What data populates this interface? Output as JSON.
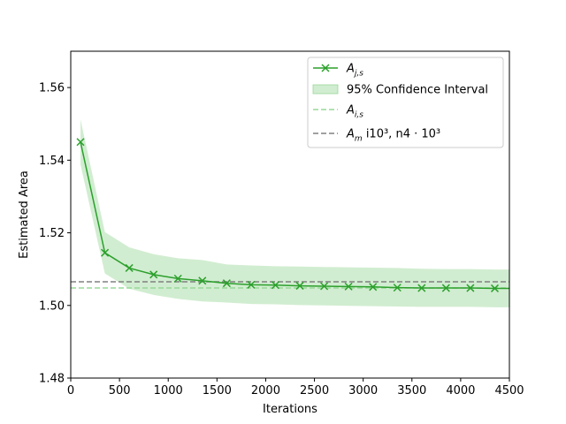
{
  "chart_data": {
    "type": "line",
    "xlabel": "Iterations",
    "ylabel": "Estimated Area",
    "xlim": [
      0,
      4500
    ],
    "ylim": [
      1.48,
      1.57
    ],
    "xticks": [
      "0",
      "500",
      "1000",
      "1500",
      "2000",
      "2500",
      "3000",
      "3500",
      "4000",
      "4500"
    ],
    "yticks": [
      "1.48",
      "1.50",
      "1.52",
      "1.54",
      "1.56"
    ],
    "grid": false,
    "legend_position": "upper-right",
    "series": [
      {
        "name": "A_{j,s}",
        "style": "line-with-x-markers",
        "color": "#2ca02c",
        "x": [
          100,
          350,
          600,
          850,
          1100,
          1350,
          1600,
          1850,
          2100,
          2350,
          2600,
          2850,
          3100,
          3350,
          3600,
          3850,
          4100,
          4350,
          4500
        ],
        "y": [
          1.545,
          1.5145,
          1.5103,
          1.5085,
          1.5074,
          1.5068,
          1.5061,
          1.5057,
          1.5056,
          1.5054,
          1.5053,
          1.5052,
          1.5051,
          1.5049,
          1.5048,
          1.5048,
          1.5048,
          1.5047,
          1.5047
        ]
      }
    ],
    "confidence_interval": {
      "name": "95% Confidence Interval",
      "color": "#98d898",
      "x": [
        100,
        350,
        600,
        850,
        1100,
        1350,
        1600,
        1850,
        2100,
        2350,
        2600,
        2850,
        3100,
        3350,
        3600,
        3850,
        4100,
        4350,
        4500
      ],
      "upper": [
        1.5512,
        1.5202,
        1.516,
        1.5141,
        1.513,
        1.5125,
        1.5113,
        1.511,
        1.5108,
        1.5107,
        1.5106,
        1.5105,
        1.5104,
        1.5103,
        1.5101,
        1.51,
        1.51,
        1.5099,
        1.5099
      ],
      "lower": [
        1.5388,
        1.5088,
        1.5046,
        1.5029,
        1.5018,
        1.5011,
        1.5008,
        1.5004,
        1.5003,
        1.5001,
        1.5,
        1.4999,
        1.4998,
        1.4997,
        1.4996,
        1.4996,
        1.4996,
        1.4995,
        1.4995
      ]
    },
    "reference_lines": [
      {
        "name": "A_{i,s}",
        "y": 1.5048,
        "style": "dashed",
        "color": "#98d898"
      },
      {
        "name": "A_m i10^3, n4·10^3",
        "y": 1.5065,
        "style": "dashed",
        "color": "#808080"
      }
    ],
    "legend": [
      {
        "label_main": "A",
        "label_sub": "j,s",
        "label_rest": "",
        "kind": "line-marker",
        "color": "#2ca02c"
      },
      {
        "label_main": "95% Confidence Interval",
        "label_sub": "",
        "label_rest": "",
        "kind": "patch",
        "color": "#98d898"
      },
      {
        "label_main": "A",
        "label_sub": "i,s",
        "label_rest": "",
        "kind": "dashed",
        "color": "#98d898"
      },
      {
        "label_main": "A",
        "label_sub": "m",
        "label_rest": " i10³, n4 · 10³",
        "kind": "dashed",
        "color": "#808080"
      }
    ]
  }
}
